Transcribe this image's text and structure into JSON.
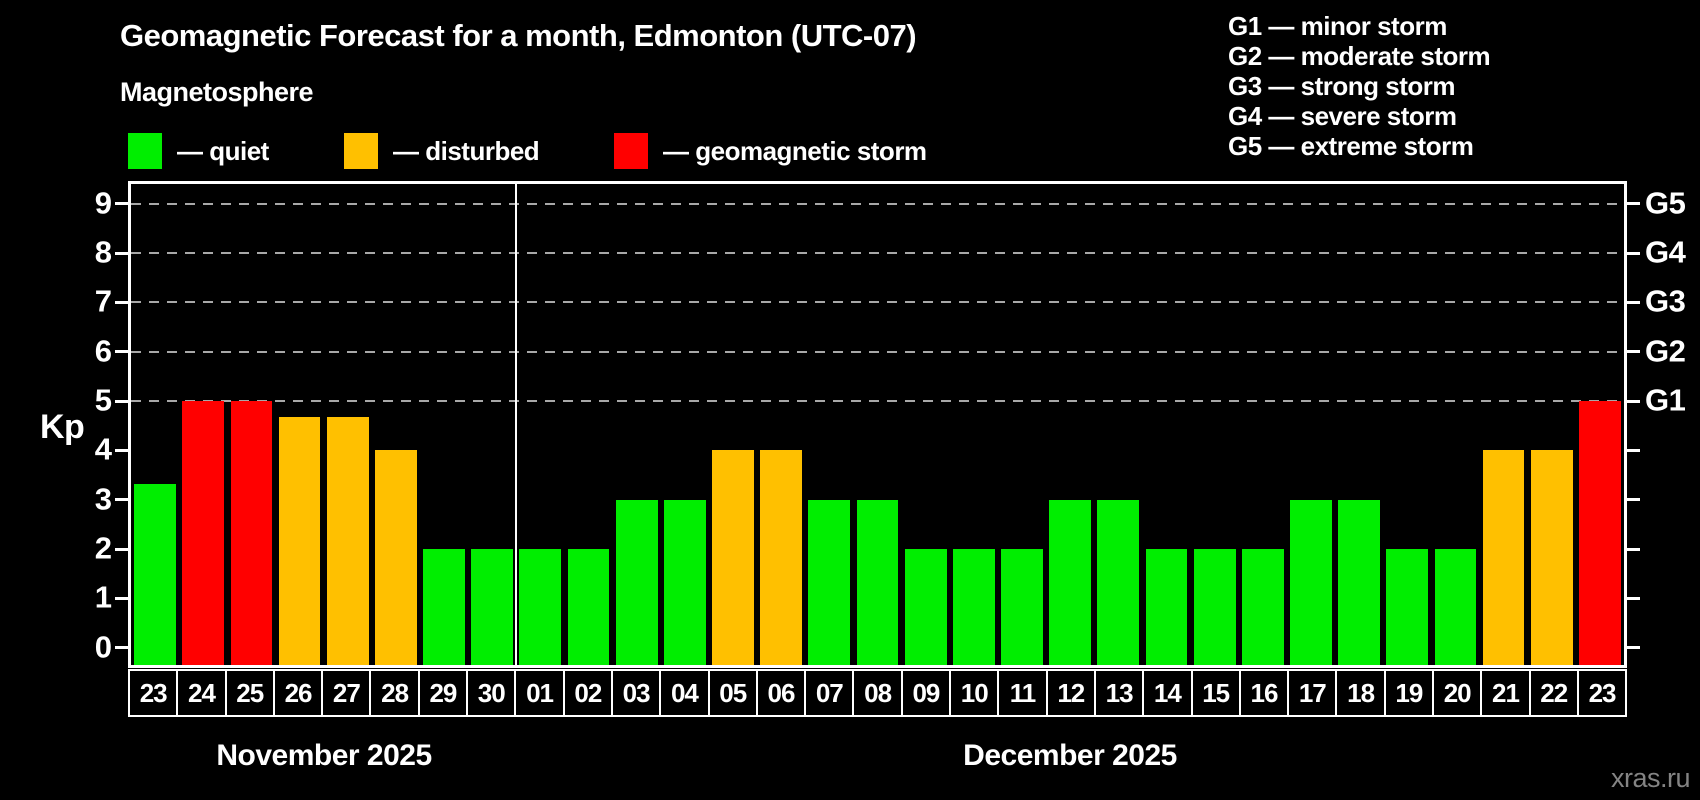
{
  "title": "Geomagnetic Forecast for a month, Edmonton (UTC-07)",
  "subtitle": "Magnetosphere",
  "status_legend": [
    {
      "status": "quiet",
      "label": "— quiet",
      "color": "#00ee00"
    },
    {
      "status": "disturbed",
      "label": "— disturbed",
      "color": "#ffc000"
    },
    {
      "status": "storm",
      "label": "— geomagnetic storm",
      "color": "#ff0000"
    }
  ],
  "storm_scale_legend": [
    {
      "label": "G1 — minor storm"
    },
    {
      "label": "G2 — moderate storm"
    },
    {
      "label": "G3 — strong storm"
    },
    {
      "label": "G4 — severe storm"
    },
    {
      "label": "G5 — extreme storm"
    }
  ],
  "watermark": "xras.ru",
  "chart_data": {
    "type": "bar",
    "ylabel": "Kp",
    "ylim": [
      -0.35,
      9.4
    ],
    "yticks": [
      0,
      1,
      2,
      3,
      4,
      5,
      6,
      7,
      8,
      9
    ],
    "gridlines_at": [
      5,
      6,
      7,
      8,
      9
    ],
    "grid": true,
    "right_axis_labels": [
      {
        "value": 9,
        "label": "G5"
      },
      {
        "value": 8,
        "label": "G4"
      },
      {
        "value": 7,
        "label": "G3"
      },
      {
        "value": 6,
        "label": "G2"
      },
      {
        "value": 5,
        "label": "G1"
      }
    ],
    "status_colors": {
      "quiet": "#00ee00",
      "disturbed": "#ffc000",
      "storm": "#ff0000"
    },
    "months": [
      {
        "label": "November 2025",
        "days": 8
      },
      {
        "label": "December 2025",
        "days": 23
      }
    ],
    "bars": [
      {
        "day": "23",
        "value": 3.33,
        "status": "quiet"
      },
      {
        "day": "24",
        "value": 5,
        "status": "storm"
      },
      {
        "day": "25",
        "value": 5,
        "status": "storm"
      },
      {
        "day": "26",
        "value": 4.67,
        "status": "disturbed"
      },
      {
        "day": "27",
        "value": 4.67,
        "status": "disturbed"
      },
      {
        "day": "28",
        "value": 4,
        "status": "disturbed"
      },
      {
        "day": "29",
        "value": 2,
        "status": "quiet"
      },
      {
        "day": "30",
        "value": 2,
        "status": "quiet"
      },
      {
        "day": "01",
        "value": 2,
        "status": "quiet"
      },
      {
        "day": "02",
        "value": 2,
        "status": "quiet"
      },
      {
        "day": "03",
        "value": 3,
        "status": "quiet"
      },
      {
        "day": "04",
        "value": 3,
        "status": "quiet"
      },
      {
        "day": "05",
        "value": 4,
        "status": "disturbed"
      },
      {
        "day": "06",
        "value": 4,
        "status": "disturbed"
      },
      {
        "day": "07",
        "value": 3,
        "status": "quiet"
      },
      {
        "day": "08",
        "value": 3,
        "status": "quiet"
      },
      {
        "day": "09",
        "value": 2,
        "status": "quiet"
      },
      {
        "day": "10",
        "value": 2,
        "status": "quiet"
      },
      {
        "day": "11",
        "value": 2,
        "status": "quiet"
      },
      {
        "day": "12",
        "value": 3,
        "status": "quiet"
      },
      {
        "day": "13",
        "value": 3,
        "status": "quiet"
      },
      {
        "day": "14",
        "value": 2,
        "status": "quiet"
      },
      {
        "day": "15",
        "value": 2,
        "status": "quiet"
      },
      {
        "day": "16",
        "value": 2,
        "status": "quiet"
      },
      {
        "day": "17",
        "value": 3,
        "status": "quiet"
      },
      {
        "day": "18",
        "value": 3,
        "status": "quiet"
      },
      {
        "day": "19",
        "value": 2,
        "status": "quiet"
      },
      {
        "day": "20",
        "value": 2,
        "status": "quiet"
      },
      {
        "day": "21",
        "value": 4,
        "status": "disturbed"
      },
      {
        "day": "22",
        "value": 4,
        "status": "disturbed"
      },
      {
        "day": "23",
        "value": 5,
        "status": "storm"
      }
    ]
  }
}
